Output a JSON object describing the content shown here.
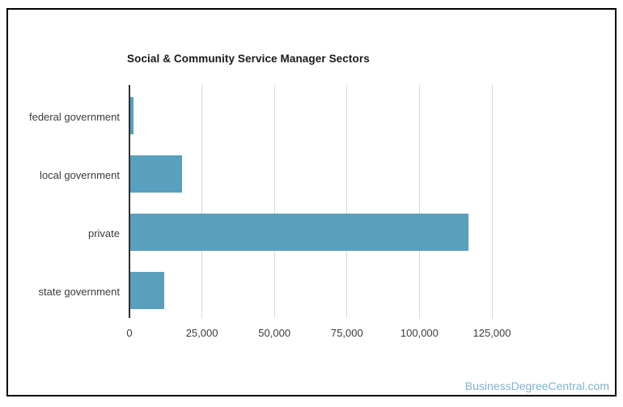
{
  "page": {
    "watermark": "BusinessDegreeCentral.com"
  },
  "chart_data": {
    "type": "bar",
    "orientation": "horizontal",
    "title": "Social & Community Service Manager Sectors",
    "categories": [
      "federal government",
      "local government",
      "private",
      "state government"
    ],
    "values": [
      1500,
      18100,
      116800,
      12000
    ],
    "x_ticks": [
      0,
      25000,
      50000,
      75000,
      100000,
      125000
    ],
    "x_tick_labels": [
      "0",
      "25,000",
      "50,000",
      "75,000",
      "100,000",
      "125,000"
    ],
    "xlim": [
      0,
      150000
    ],
    "grid": true,
    "legend": false,
    "colors": {
      "bar": "#58A0BE",
      "axis_line": "#2F2F2F",
      "gridline": "#D9D9D9",
      "tick_label": "#3C3C3C",
      "category_label": "#3C3C3C",
      "title": "#1A1A1A",
      "watermark": "#7FB2CE",
      "frame_border": "#000000",
      "background": "#FFFFFF"
    }
  }
}
